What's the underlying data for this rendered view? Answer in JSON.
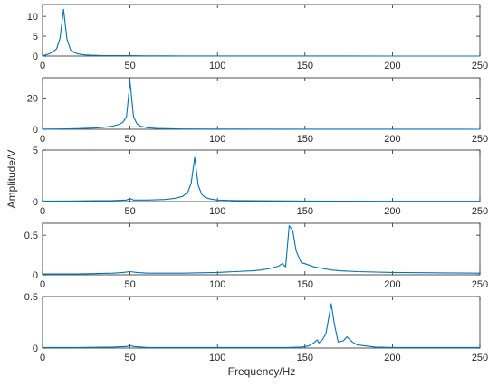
{
  "figure": {
    "xlabel": "Frequency/Hz",
    "ylabel": "Amplitude/V",
    "line_color": "#0072BD"
  },
  "chart_data": [
    {
      "type": "line",
      "xlim": [
        0,
        250
      ],
      "ylim": [
        0,
        13
      ],
      "xticks": [
        0,
        50,
        100,
        150,
        200,
        250
      ],
      "yticks": [
        0,
        5,
        10
      ],
      "x": [
        0,
        2,
        4,
        6,
        8,
        10,
        12,
        14,
        16,
        18,
        20,
        22,
        24,
        26,
        28,
        30,
        35,
        40,
        45,
        50,
        55,
        60,
        70,
        80,
        100,
        150,
        200,
        250
      ],
      "y": [
        0.1,
        0.3,
        0.6,
        1.1,
        1.8,
        4.5,
        11.8,
        4.2,
        1.6,
        0.9,
        0.6,
        0.4,
        0.3,
        0.25,
        0.2,
        0.18,
        0.12,
        0.1,
        0.08,
        0.1,
        0.06,
        0.05,
        0.04,
        0.03,
        0.02,
        0.02,
        0.01,
        0.01
      ]
    },
    {
      "type": "line",
      "xlim": [
        0,
        250
      ],
      "ylim": [
        0,
        33
      ],
      "xticks": [
        0,
        50,
        100,
        150,
        200,
        250
      ],
      "yticks": [
        0,
        20
      ],
      "x": [
        0,
        10,
        20,
        30,
        35,
        40,
        44,
        46,
        48,
        50,
        52,
        54,
        56,
        60,
        65,
        70,
        80,
        100,
        150,
        200,
        250
      ],
      "y": [
        0.1,
        0.2,
        0.4,
        0.8,
        1.3,
        2.0,
        3.2,
        4.5,
        8.0,
        30.5,
        8.0,
        3.5,
        2.0,
        1.0,
        0.6,
        0.4,
        0.2,
        0.1,
        0.05,
        0.03,
        0.02
      ]
    },
    {
      "type": "line",
      "xlim": [
        0,
        250
      ],
      "ylim": [
        0,
        5
      ],
      "xticks": [
        0,
        50,
        100,
        150,
        200,
        250
      ],
      "yticks": [
        0,
        5
      ],
      "x": [
        0,
        10,
        20,
        30,
        40,
        48,
        50,
        52,
        60,
        70,
        75,
        80,
        83,
        85,
        87,
        89,
        91,
        93,
        96,
        100,
        110,
        120,
        150,
        200,
        250
      ],
      "y": [
        0.05,
        0.05,
        0.06,
        0.08,
        0.1,
        0.15,
        0.3,
        0.15,
        0.15,
        0.2,
        0.3,
        0.5,
        0.9,
        1.8,
        4.3,
        1.6,
        0.7,
        0.4,
        0.25,
        0.15,
        0.1,
        0.08,
        0.05,
        0.03,
        0.03
      ]
    },
    {
      "type": "line",
      "xlim": [
        0,
        250
      ],
      "ylim": [
        0,
        0.65
      ],
      "xticks": [
        0,
        50,
        100,
        150,
        200,
        250
      ],
      "yticks": [
        0,
        0.5
      ],
      "x": [
        0,
        20,
        40,
        46,
        50,
        54,
        60,
        80,
        100,
        110,
        120,
        125,
        130,
        135,
        137,
        139,
        141,
        143,
        145,
        148,
        150,
        155,
        160,
        165,
        170,
        180,
        200,
        250
      ],
      "y": [
        0.01,
        0.01,
        0.02,
        0.03,
        0.04,
        0.03,
        0.02,
        0.02,
        0.03,
        0.04,
        0.05,
        0.06,
        0.08,
        0.11,
        0.14,
        0.1,
        0.62,
        0.56,
        0.3,
        0.15,
        0.14,
        0.1,
        0.08,
        0.06,
        0.05,
        0.04,
        0.03,
        0.02
      ]
    },
    {
      "type": "line",
      "xlim": [
        0,
        250
      ],
      "ylim": [
        0,
        0.5
      ],
      "xticks": [
        0,
        50,
        100,
        150,
        200,
        250
      ],
      "yticks": [
        0,
        0.5
      ],
      "x": [
        0,
        20,
        40,
        48,
        50,
        52,
        60,
        80,
        100,
        120,
        140,
        148,
        152,
        155,
        157,
        158,
        160,
        162,
        165,
        167,
        169,
        172,
        174,
        177,
        180,
        185,
        190,
        200,
        220,
        250
      ],
      "y": [
        0.005,
        0.005,
        0.01,
        0.015,
        0.025,
        0.015,
        0.005,
        0.005,
        0.005,
        0.005,
        0.005,
        0.01,
        0.02,
        0.05,
        0.08,
        0.05,
        0.08,
        0.14,
        0.43,
        0.22,
        0.06,
        0.07,
        0.11,
        0.06,
        0.03,
        0.02,
        0.01,
        0.005,
        0.005,
        0.005
      ]
    }
  ]
}
